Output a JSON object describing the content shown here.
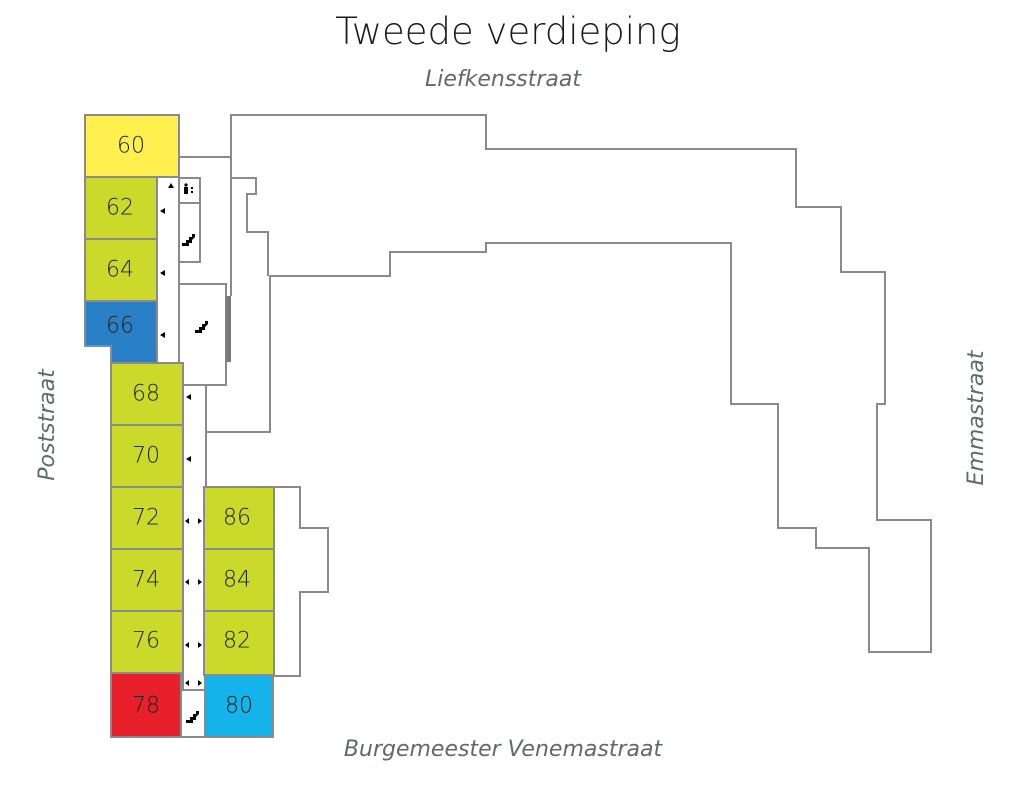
{
  "title": "Tweede verdieping",
  "streets": {
    "north": "Liefkensstraat",
    "west": "Poststraat",
    "east": "Emmastraat",
    "south": "Burgemeester Venemastraat"
  },
  "colors": {
    "yellow": "#fff04f",
    "green": "#cbd92b",
    "blue": "#2a80c6",
    "red": "#e8202b",
    "cyan": "#14b3e9"
  },
  "units": [
    {
      "number": "60",
      "color": "#fff04f"
    },
    {
      "number": "62",
      "color": "#cbd92b"
    },
    {
      "number": "64",
      "color": "#cbd92b"
    },
    {
      "number": "66",
      "color": "#2a80c6"
    },
    {
      "number": "68",
      "color": "#cbd92b"
    },
    {
      "number": "70",
      "color": "#cbd92b"
    },
    {
      "number": "72",
      "color": "#cbd92b"
    },
    {
      "number": "74",
      "color": "#cbd92b"
    },
    {
      "number": "76",
      "color": "#cbd92b"
    },
    {
      "number": "78",
      "color": "#e8202b"
    },
    {
      "number": "80",
      "color": "#14b3e9"
    },
    {
      "number": "82",
      "color": "#cbd92b"
    },
    {
      "number": "84",
      "color": "#cbd92b"
    },
    {
      "number": "86",
      "color": "#cbd92b"
    }
  ],
  "icons": [
    "toilet-icon",
    "stairs-icon",
    "arrow-icon"
  ]
}
